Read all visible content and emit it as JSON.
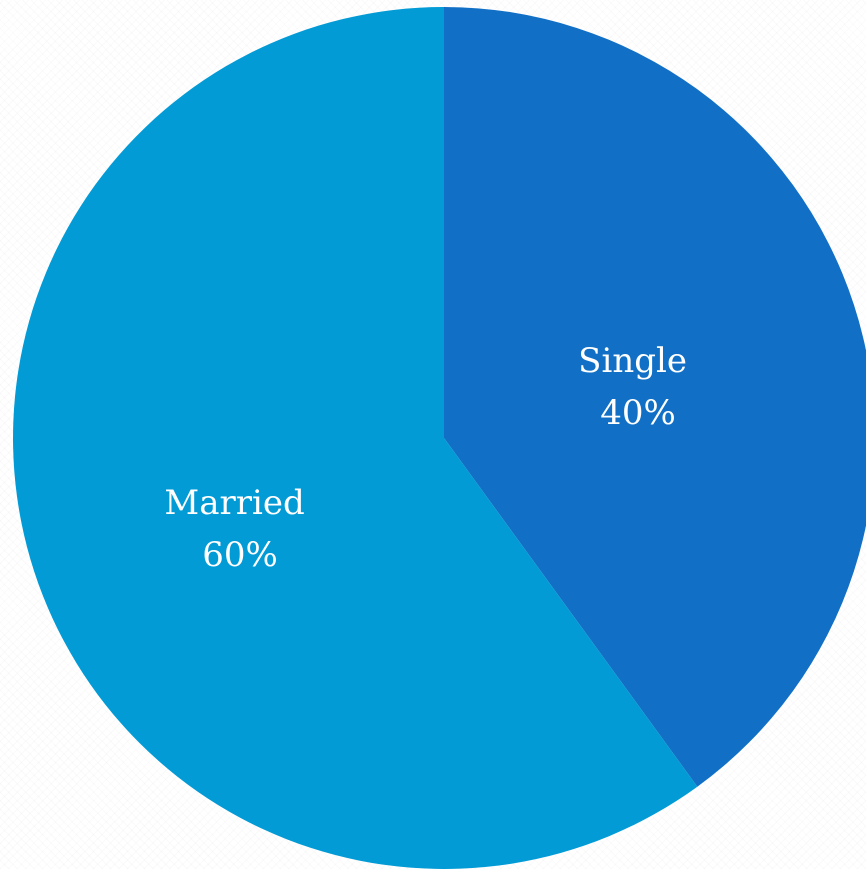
{
  "chart_data": {
    "type": "pie",
    "title": "",
    "slices": [
      {
        "label": "Single",
        "value": 40,
        "value_label": "40%",
        "color": "#1170c6"
      },
      {
        "label": "Married",
        "value": 60,
        "value_label": "60%",
        "color": "#039bd6"
      }
    ],
    "start_angle_deg": 0,
    "direction": "clockwise",
    "legend": "none",
    "label_color": "#ffffff"
  }
}
